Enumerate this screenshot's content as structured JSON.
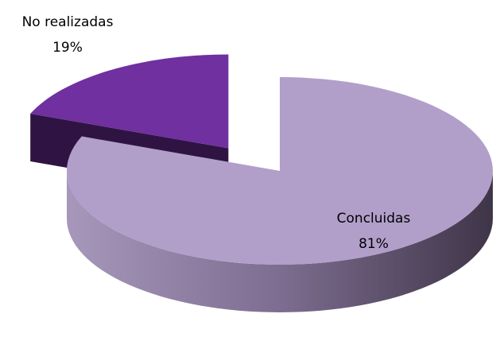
{
  "chart_data": {
    "type": "pie",
    "categories": [
      "Concluidas",
      "No realizadas"
    ],
    "values": [
      81,
      19
    ],
    "value_labels": [
      "81%",
      "19%"
    ],
    "colors": [
      "#b19fca",
      "#7030a0"
    ]
  }
}
